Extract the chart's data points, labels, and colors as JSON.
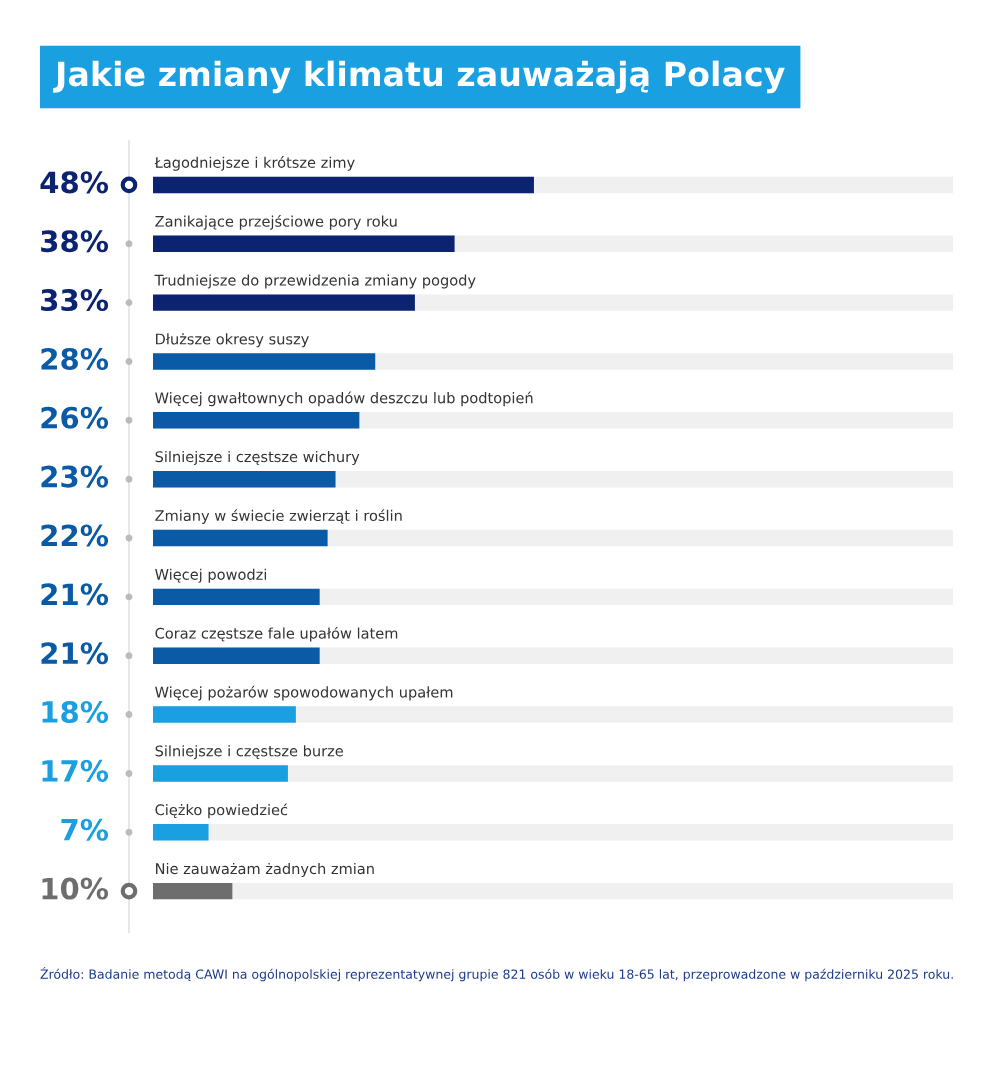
{
  "chart_data": {
    "type": "bar",
    "orientation": "horizontal",
    "title": "Jakie zmiany klimatu zauważają Polacy",
    "categories": [
      "Łagodniejsze i krótsze zimy",
      "Zanikające przejściowe pory roku",
      "Trudniejsze do przewidzenia zmiany pogody",
      "Dłuższe okresy suszy",
      "Więcej gwałtownych opadów deszczu lub podtopień",
      "Silniejsze i częstsze wichury",
      "Zmiany w świecie zwierząt i roślin",
      "Więcej powodzi",
      "Coraz częstsze fale upałów latem",
      "Więcej pożarów spowodowanych upałem",
      "Silniejsze i częstsze burze",
      "Ciężko powiedzieć",
      "Nie zauważam żadnych zmian"
    ],
    "values": [
      48,
      38,
      33,
      28,
      26,
      23,
      22,
      21,
      21,
      18,
      17,
      7,
      10
    ],
    "colors": [
      "#0b2370",
      "#0b2370",
      "#0b2370",
      "#0a5aa5",
      "#0a5aa5",
      "#0a5aa5",
      "#0a5aa5",
      "#0a5aa5",
      "#0a5aa5",
      "#1a9fe0",
      "#1a9fe0",
      "#1a9fe0",
      "#6e6e6e"
    ],
    "value_labels": [
      "48%",
      "38%",
      "33%",
      "28%",
      "26%",
      "23%",
      "22%",
      "21%",
      "21%",
      "18%",
      "17%",
      "7%",
      "10%"
    ],
    "annotations": [
      "Źródło: Badanie metodą CAWI na ogólnopolskiej reprezentatywnej grupie 821 osób w wieku 18-65 lat, przeprowadzone w październiku 2025 roku."
    ]
  }
}
